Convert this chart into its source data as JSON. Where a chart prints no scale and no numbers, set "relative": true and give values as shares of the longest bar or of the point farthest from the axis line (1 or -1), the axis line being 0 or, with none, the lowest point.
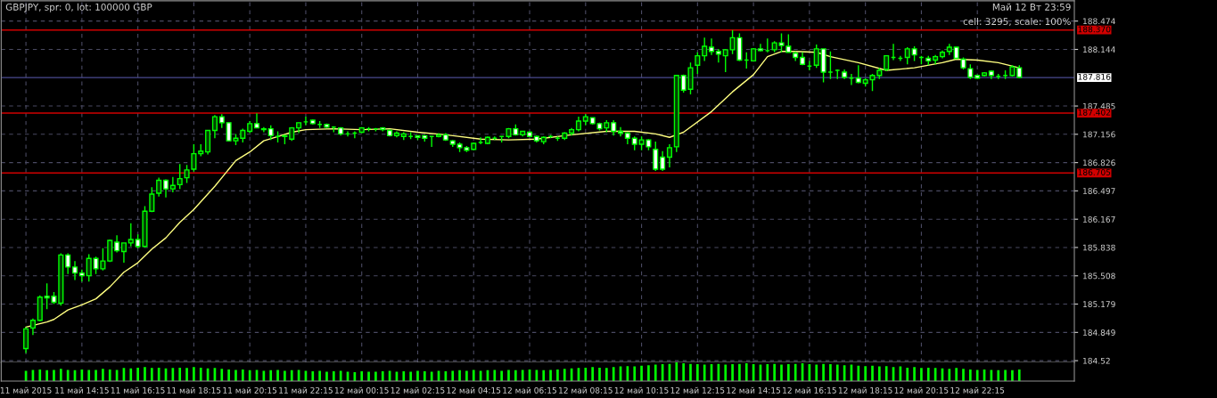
{
  "chart_data": [
    {
      "type": "candlestick",
      "title": "GBPJPY, spr: 0, lot: 100000 GBP",
      "annotations": [
        "Май 12 Вт 23:59",
        "cell: 3295, scale: 100%"
      ],
      "color": "#00ff00",
      "x": [
        "2015-05-11T12:15",
        "2015-05-11T12:30",
        "2015-05-11T12:45",
        "2015-05-11T13:00",
        "2015-05-11T13:15",
        "2015-05-11T13:30",
        "2015-05-11T13:45",
        "2015-05-11T14:00",
        "2015-05-11T14:15",
        "2015-05-11T14:30",
        "2015-05-11T14:45",
        "2015-05-11T15:00",
        "2015-05-11T15:15",
        "2015-05-11T15:30",
        "2015-05-11T15:45",
        "2015-05-11T16:00",
        "2015-05-11T16:15",
        "2015-05-11T16:30",
        "2015-05-11T16:45",
        "2015-05-11T17:00",
        "2015-05-11T17:15",
        "2015-05-11T17:30",
        "2015-05-11T17:45",
        "2015-05-11T18:00",
        "2015-05-11T18:15",
        "2015-05-11T18:30",
        "2015-05-11T18:45",
        "2015-05-11T19:00",
        "2015-05-11T19:15",
        "2015-05-11T19:30",
        "2015-05-11T19:45",
        "2015-05-11T20:00",
        "2015-05-11T20:15",
        "2015-05-11T20:30",
        "2015-05-11T20:45",
        "2015-05-11T21:00",
        "2015-05-11T21:15",
        "2015-05-11T21:30",
        "2015-05-11T21:45",
        "2015-05-11T22:00",
        "2015-05-11T22:15",
        "2015-05-11T22:30",
        "2015-05-11T22:45",
        "2015-05-11T23:00",
        "2015-05-11T23:15",
        "2015-05-11T23:30",
        "2015-05-11T23:45",
        "2015-05-12T00:00",
        "2015-05-12T00:15",
        "2015-05-12T00:30",
        "2015-05-12T00:45",
        "2015-05-12T01:00",
        "2015-05-12T01:15",
        "2015-05-12T01:30",
        "2015-05-12T01:45",
        "2015-05-12T02:00",
        "2015-05-12T02:15",
        "2015-05-12T02:30",
        "2015-05-12T02:45",
        "2015-05-12T03:00",
        "2015-05-12T03:15",
        "2015-05-12T03:30",
        "2015-05-12T03:45",
        "2015-05-12T04:00",
        "2015-05-12T04:15",
        "2015-05-12T04:30",
        "2015-05-12T04:45",
        "2015-05-12T05:00",
        "2015-05-12T05:15",
        "2015-05-12T05:30",
        "2015-05-12T05:45",
        "2015-05-12T06:00",
        "2015-05-12T06:15",
        "2015-05-12T06:30",
        "2015-05-12T06:45",
        "2015-05-12T07:00",
        "2015-05-12T07:15",
        "2015-05-12T07:30",
        "2015-05-12T07:45",
        "2015-05-12T08:00",
        "2015-05-12T08:15",
        "2015-05-12T08:30",
        "2015-05-12T08:45",
        "2015-05-12T09:00",
        "2015-05-12T09:15",
        "2015-05-12T09:30",
        "2015-05-12T09:45",
        "2015-05-12T10:00",
        "2015-05-12T10:15",
        "2015-05-12T10:30",
        "2015-05-12T10:45",
        "2015-05-12T11:00",
        "2015-05-12T11:15",
        "2015-05-12T11:30",
        "2015-05-12T11:45",
        "2015-05-12T12:00",
        "2015-05-12T12:15",
        "2015-05-12T12:30",
        "2015-05-12T12:45",
        "2015-05-12T13:00",
        "2015-05-12T13:15",
        "2015-05-12T13:30",
        "2015-05-12T13:45",
        "2015-05-12T14:00",
        "2015-05-12T14:15",
        "2015-05-12T14:30",
        "2015-05-12T14:45",
        "2015-05-12T15:00",
        "2015-05-12T15:15",
        "2015-05-12T15:30",
        "2015-05-12T15:45",
        "2015-05-12T16:00",
        "2015-05-12T16:15",
        "2015-05-12T16:30",
        "2015-05-12T16:45",
        "2015-05-12T17:00",
        "2015-05-12T17:15",
        "2015-05-12T17:30",
        "2015-05-12T17:45",
        "2015-05-12T18:00",
        "2015-05-12T18:15",
        "2015-05-12T18:30",
        "2015-05-12T18:45",
        "2015-05-12T19:00",
        "2015-05-12T19:15",
        "2015-05-12T19:30",
        "2015-05-12T19:45",
        "2015-05-12T20:00",
        "2015-05-12T20:15",
        "2015-05-12T20:30",
        "2015-05-12T20:45",
        "2015-05-12T21:00",
        "2015-05-12T21:15",
        "2015-05-12T21:30",
        "2015-05-12T21:45",
        "2015-05-12T22:00",
        "2015-05-12T22:15",
        "2015-05-12T22:30",
        "2015-05-12T22:45",
        "2015-05-12T23:00",
        "2015-05-12T23:15",
        "2015-05-12T23:30",
        "2015-05-12T23:45"
      ],
      "ohlc": [
        [
          184.66,
          184.91,
          184.61,
          184.89
        ],
        [
          184.9,
          185.01,
          184.82,
          184.99
        ],
        [
          184.99,
          185.28,
          184.98,
          185.26
        ],
        [
          185.27,
          185.42,
          185.12,
          185.25
        ],
        [
          185.27,
          185.32,
          185.18,
          185.2
        ],
        [
          185.19,
          185.77,
          185.16,
          185.75
        ],
        [
          185.75,
          185.77,
          185.53,
          185.61
        ],
        [
          185.61,
          185.68,
          185.46,
          185.54
        ],
        [
          185.54,
          185.58,
          185.44,
          185.51
        ],
        [
          185.51,
          185.76,
          185.44,
          185.71
        ],
        [
          185.71,
          185.73,
          185.53,
          185.59
        ],
        [
          185.59,
          185.83,
          185.57,
          185.68
        ],
        [
          185.68,
          185.93,
          185.67,
          185.92
        ],
        [
          185.9,
          185.98,
          185.78,
          185.8
        ],
        [
          185.79,
          185.89,
          185.66,
          185.89
        ],
        [
          185.89,
          186.12,
          185.85,
          185.93
        ],
        [
          185.93,
          185.99,
          185.83,
          185.85
        ],
        [
          185.85,
          186.32,
          185.84,
          186.26
        ],
        [
          186.26,
          186.54,
          186.25,
          186.46
        ],
        [
          186.47,
          186.65,
          186.43,
          186.62
        ],
        [
          186.62,
          186.63,
          186.42,
          186.52
        ],
        [
          186.52,
          186.66,
          186.48,
          186.56
        ],
        [
          186.57,
          186.81,
          186.52,
          186.64
        ],
        [
          186.65,
          186.8,
          186.59,
          186.74
        ],
        [
          186.75,
          187.04,
          186.72,
          186.93
        ],
        [
          186.93,
          187.04,
          186.9,
          186.96
        ],
        [
          186.95,
          187.2,
          186.92,
          187.2
        ],
        [
          187.2,
          187.38,
          187.11,
          187.36
        ],
        [
          187.36,
          187.39,
          187.23,
          187.29
        ],
        [
          187.29,
          187.29,
          187.08,
          187.08
        ],
        [
          187.08,
          187.16,
          187.03,
          187.11
        ],
        [
          187.11,
          187.22,
          187.06,
          187.2
        ],
        [
          187.19,
          187.31,
          187.17,
          187.28
        ],
        [
          187.28,
          187.4,
          187.23,
          187.23
        ],
        [
          187.22,
          187.24,
          187.18,
          187.21
        ],
        [
          187.22,
          187.26,
          187.09,
          187.14
        ],
        [
          187.13,
          187.19,
          187.06,
          187.13
        ],
        [
          187.14,
          187.15,
          187.04,
          187.13
        ],
        [
          187.1,
          187.24,
          187.08,
          187.23
        ],
        [
          187.23,
          187.29,
          187.17,
          187.29
        ],
        [
          187.3,
          187.36,
          187.26,
          187.3
        ],
        [
          187.32,
          187.33,
          187.27,
          187.28
        ],
        [
          187.27,
          187.31,
          187.23,
          187.27
        ],
        [
          187.27,
          187.28,
          187.23,
          187.24
        ],
        [
          187.24,
          187.25,
          187.18,
          187.24
        ],
        [
          187.23,
          187.24,
          187.14,
          187.16
        ],
        [
          187.16,
          187.19,
          187.13,
          187.16
        ],
        [
          187.17,
          187.19,
          187.11,
          187.17
        ],
        [
          187.18,
          187.24,
          187.17,
          187.23
        ],
        [
          187.22,
          187.24,
          187.19,
          187.22
        ],
        [
          187.22,
          187.23,
          187.19,
          187.22
        ],
        [
          187.23,
          187.24,
          187.19,
          187.21
        ],
        [
          187.2,
          187.21,
          187.13,
          187.14
        ],
        [
          187.14,
          187.19,
          187.12,
          187.17
        ],
        [
          187.13,
          187.18,
          187.09,
          187.16
        ],
        [
          187.13,
          187.18,
          187.1,
          187.13
        ],
        [
          187.14,
          187.14,
          187.09,
          187.12
        ],
        [
          187.14,
          187.15,
          187.07,
          187.11
        ],
        [
          187.13,
          187.13,
          187.01,
          187.13
        ],
        [
          187.13,
          187.17,
          187.12,
          187.15
        ],
        [
          187.15,
          187.17,
          187.08,
          187.09
        ],
        [
          187.08,
          187.09,
          187.01,
          187.04
        ],
        [
          187.04,
          187.06,
          186.95,
          187.0
        ],
        [
          187.0,
          187.02,
          186.95,
          186.97
        ],
        [
          186.98,
          187.06,
          186.97,
          187.05
        ],
        [
          187.06,
          187.12,
          187.04,
          187.06
        ],
        [
          187.05,
          187.13,
          187.04,
          187.12
        ],
        [
          187.11,
          187.13,
          187.09,
          187.11
        ],
        [
          187.13,
          187.13,
          187.06,
          187.13
        ],
        [
          187.13,
          187.23,
          187.11,
          187.22
        ],
        [
          187.22,
          187.27,
          187.14,
          187.15
        ],
        [
          187.15,
          187.19,
          187.13,
          187.19
        ],
        [
          187.18,
          187.19,
          187.13,
          187.13
        ],
        [
          187.13,
          187.14,
          187.06,
          187.08
        ],
        [
          187.07,
          187.13,
          187.04,
          187.12
        ],
        [
          187.13,
          187.15,
          187.11,
          187.13
        ],
        [
          187.11,
          187.13,
          187.08,
          187.11
        ],
        [
          187.11,
          187.18,
          187.09,
          187.17
        ],
        [
          187.17,
          187.23,
          187.14,
          187.21
        ],
        [
          187.21,
          187.36,
          187.19,
          187.31
        ],
        [
          187.31,
          187.39,
          187.26,
          187.36
        ],
        [
          187.35,
          187.35,
          187.27,
          187.28
        ],
        [
          187.28,
          187.29,
          187.2,
          187.22
        ],
        [
          187.23,
          187.32,
          187.18,
          187.29
        ],
        [
          187.29,
          187.32,
          187.14,
          187.19
        ],
        [
          187.19,
          187.24,
          187.13,
          187.17
        ],
        [
          187.17,
          187.18,
          187.04,
          187.11
        ],
        [
          187.11,
          187.13,
          186.97,
          187.04
        ],
        [
          187.04,
          187.13,
          186.97,
          187.09
        ],
        [
          187.09,
          187.1,
          186.97,
          187.01
        ],
        [
          186.98,
          187.07,
          186.73,
          186.75
        ],
        [
          186.89,
          186.96,
          186.73,
          186.75
        ],
        [
          186.89,
          187.04,
          186.77,
          187.0
        ],
        [
          187.01,
          187.84,
          186.95,
          187.84
        ],
        [
          187.84,
          187.85,
          187.64,
          187.67
        ],
        [
          187.68,
          187.99,
          187.62,
          187.93
        ],
        [
          187.96,
          188.11,
          187.86,
          188.07
        ],
        [
          188.07,
          188.28,
          188.01,
          188.18
        ],
        [
          188.17,
          188.27,
          188.08,
          188.12
        ],
        [
          188.12,
          188.15,
          187.99,
          188.09
        ],
        [
          188.07,
          188.15,
          187.88,
          188.14
        ],
        [
          188.14,
          188.37,
          188.09,
          188.28
        ],
        [
          188.28,
          188.33,
          188.01,
          188.02
        ],
        [
          188.02,
          188.11,
          187.92,
          188.02
        ],
        [
          188.01,
          188.16,
          188.01,
          188.15
        ],
        [
          188.15,
          188.21,
          188.12,
          188.13
        ],
        [
          188.13,
          188.27,
          188.11,
          188.13
        ],
        [
          188.14,
          188.24,
          188.11,
          188.22
        ],
        [
          188.22,
          188.33,
          188.11,
          188.19
        ],
        [
          188.18,
          188.32,
          188.11,
          188.11
        ],
        [
          188.1,
          188.12,
          188.01,
          188.05
        ],
        [
          188.05,
          188.11,
          187.96,
          187.97
        ],
        [
          187.95,
          188.01,
          187.9,
          187.95
        ],
        [
          187.96,
          188.2,
          187.93,
          188.15
        ],
        [
          188.15,
          188.15,
          187.76,
          187.88
        ],
        [
          187.88,
          188.12,
          187.8,
          187.88
        ],
        [
          187.9,
          187.91,
          187.8,
          187.9
        ],
        [
          187.88,
          187.91,
          187.8,
          187.82
        ],
        [
          187.81,
          187.86,
          187.73,
          187.81
        ],
        [
          187.81,
          187.96,
          187.75,
          187.76
        ],
        [
          187.75,
          187.81,
          187.71,
          187.79
        ],
        [
          187.79,
          187.86,
          187.66,
          187.84
        ],
        [
          187.84,
          187.93,
          187.8,
          187.9
        ],
        [
          187.91,
          188.07,
          187.89,
          188.07
        ],
        [
          188.05,
          188.21,
          188.02,
          188.05
        ],
        [
          188.04,
          188.07,
          188.01,
          188.04
        ],
        [
          188.05,
          188.17,
          187.97,
          188.15
        ],
        [
          188.15,
          188.18,
          188.01,
          188.08
        ],
        [
          188.05,
          188.07,
          187.97,
          188.05
        ],
        [
          188.04,
          188.07,
          187.96,
          188.01
        ],
        [
          188.02,
          188.08,
          187.97,
          188.06
        ],
        [
          188.06,
          188.13,
          188.04,
          188.11
        ],
        [
          188.12,
          188.21,
          188.08,
          188.17
        ],
        [
          188.17,
          188.17,
          188.04,
          188.04
        ],
        [
          188.03,
          188.05,
          187.91,
          187.93
        ],
        [
          187.92,
          187.97,
          187.8,
          187.82
        ],
        [
          187.84,
          187.85,
          187.8,
          187.81
        ],
        [
          187.84,
          187.88,
          187.83,
          187.87
        ],
        [
          187.89,
          187.9,
          187.8,
          187.84
        ],
        [
          187.83,
          187.86,
          187.8,
          187.83
        ],
        [
          187.84,
          187.9,
          187.8,
          187.84
        ],
        [
          187.84,
          187.96,
          187.83,
          187.94
        ],
        [
          187.93,
          187.96,
          187.81,
          187.82
        ]
      ],
      "series": [
        {
          "type": "line",
          "color": "#ffff80",
          "x": [
            "2015-05-11T12:15",
            "2015-05-11T13:00",
            "2015-05-11T13:15",
            "2015-05-11T13:45",
            "2015-05-11T14:15",
            "2015-05-11T14:45",
            "2015-05-11T15:15",
            "2015-05-11T15:45",
            "2015-05-11T16:15",
            "2015-05-11T16:45",
            "2015-05-11T17:15",
            "2015-05-11T17:45",
            "2015-05-11T18:15",
            "2015-05-11T19:00",
            "2015-05-11T19:30",
            "2015-05-11T19:45",
            "2015-05-11T20:15",
            "2015-05-11T20:45",
            "2015-05-11T21:15",
            "2015-05-11T21:45",
            "2015-05-11T22:15",
            "2015-05-11T23:15",
            "2015-05-12T00:15",
            "2015-05-12T01:15",
            "2015-05-12T02:15",
            "2015-05-12T03:15",
            "2015-05-12T04:30",
            "2015-05-12T05:30",
            "2015-05-12T06:30",
            "2015-05-12T07:45",
            "2015-05-12T09:00",
            "2015-05-12T10:00",
            "2015-05-12T10:45",
            "2015-05-12T11:15",
            "2015-05-12T11:45",
            "2015-05-12T12:45",
            "2015-05-12T13:30",
            "2015-05-12T14:15",
            "2015-05-12T14:45",
            "2015-05-12T15:15",
            "2015-05-12T15:45",
            "2015-05-12T16:30",
            "2015-05-12T17:00",
            "2015-05-12T18:00",
            "2015-05-12T19:00",
            "2015-05-12T20:00",
            "2015-05-12T21:00",
            "2015-05-12T21:30",
            "2015-05-12T22:15",
            "2015-05-12T23:00",
            "2015-05-12T23:45"
          ],
          "values": [
            184.91,
            184.97,
            185.0,
            185.11,
            185.17,
            185.24,
            185.38,
            185.55,
            185.66,
            185.82,
            185.95,
            186.13,
            186.28,
            186.55,
            186.75,
            186.85,
            186.95,
            187.08,
            187.13,
            187.18,
            187.21,
            187.22,
            187.21,
            187.22,
            187.18,
            187.15,
            187.1,
            187.09,
            187.1,
            187.15,
            187.19,
            187.19,
            187.16,
            187.12,
            187.18,
            187.42,
            187.65,
            187.85,
            188.06,
            188.12,
            188.12,
            188.11,
            188.06,
            187.99,
            187.9,
            187.93,
            187.99,
            188.03,
            188.02,
            187.99,
            187.93
          ]
        }
      ],
      "ref_lines": [
        {
          "axis": "y",
          "value": 188.37,
          "label": "188.370",
          "color": "#d00000"
        },
        {
          "axis": "y",
          "value": 187.816,
          "label": "187.816",
          "color": "#4a4a90"
        },
        {
          "axis": "y",
          "value": 187.402,
          "label": "187.402",
          "color": "#d00000"
        },
        {
          "axis": "y",
          "value": 186.705,
          "label": "186.705",
          "color": "#d00000"
        }
      ],
      "xlim": [
        "2015-05-11T11:22",
        "2015-05-13T01:43"
      ],
      "ylim": [
        184.5,
        188.71
      ],
      "xticks": [
        {
          "value": "2015-05-11T12:15",
          "label": "11 май 2015"
        },
        {
          "value": "2015-05-11T14:15",
          "label": "11 май 14:15"
        },
        {
          "value": "2015-05-11T16:15",
          "label": "11 май 16:15"
        },
        {
          "value": "2015-05-11T18:15",
          "label": "11 май 18:15"
        },
        {
          "value": "2015-05-11T20:15",
          "label": "11 май 20:15"
        },
        {
          "value": "2015-05-11T22:15",
          "label": "11 май 22:15"
        },
        {
          "value": "2015-05-12T00:15",
          "label": "12 май 00:15"
        },
        {
          "value": "2015-05-12T02:15",
          "label": "12 май 02:15"
        },
        {
          "value": "2015-05-12T04:15",
          "label": "12 май 04:15"
        },
        {
          "value": "2015-05-12T06:15",
          "label": "12 май 06:15"
        },
        {
          "value": "2015-05-12T08:15",
          "label": "12 май 08:15"
        },
        {
          "value": "2015-05-12T10:15",
          "label": "12 май 10:15"
        },
        {
          "value": "2015-05-12T12:15",
          "label": "12 май 12:15"
        },
        {
          "value": "2015-05-12T14:15",
          "label": "12 май 14:15"
        },
        {
          "value": "2015-05-12T16:15",
          "label": "12 май 16:15"
        },
        {
          "value": "2015-05-12T18:15",
          "label": "12 май 18:15"
        },
        {
          "value": "2015-05-12T20:15",
          "label": "12 май 20:15"
        },
        {
          "value": "2015-05-12T22:15",
          "label": "12 май 22:15"
        }
      ],
      "yticks": [
        184.52,
        184.849,
        185.179,
        185.508,
        185.838,
        186.167,
        186.497,
        186.826,
        187.156,
        187.485,
        188.144,
        188.474
      ],
      "grid": true
    },
    {
      "type": "bar",
      "relative": true,
      "color": "#00ff00",
      "categories": [
        null,
        null,
        null,
        null,
        null,
        null,
        null,
        null,
        null,
        null,
        null,
        null,
        null,
        null,
        null,
        null,
        null,
        null,
        null,
        null,
        null,
        null,
        null,
        null,
        null,
        null,
        null,
        null,
        null,
        null,
        null,
        null,
        null,
        null,
        null,
        null,
        null,
        null,
        null,
        null,
        null,
        null,
        null,
        null,
        null,
        null,
        null,
        null,
        null,
        null,
        null,
        null,
        null,
        null,
        null,
        null,
        null,
        null,
        null,
        null,
        null,
        null,
        null,
        null,
        null,
        null,
        null,
        null,
        null,
        null,
        null,
        null,
        null,
        null,
        null,
        null,
        null,
        null,
        null,
        null,
        null,
        null,
        null,
        null,
        null,
        null,
        null,
        null,
        null,
        null,
        null,
        null,
        null,
        null,
        null,
        null,
        null,
        null,
        null,
        null,
        null,
        null,
        null,
        null,
        null,
        null,
        null,
        null,
        null,
        null,
        null,
        null,
        null,
        null,
        null,
        null,
        null,
        null,
        null,
        null,
        null,
        null,
        null,
        null,
        null,
        null,
        null,
        null,
        null,
        null,
        null,
        null,
        null,
        null,
        null,
        null,
        null,
        null,
        null,
        null,
        null,
        null,
        null
      ],
      "values": [
        0.55,
        0.6,
        0.62,
        0.58,
        0.6,
        0.65,
        0.6,
        0.58,
        0.62,
        0.6,
        0.6,
        0.65,
        0.62,
        0.6,
        0.7,
        0.68,
        0.72,
        0.75,
        0.7,
        0.72,
        0.68,
        0.7,
        0.72,
        0.7,
        0.75,
        0.72,
        0.68,
        0.7,
        0.65,
        0.62,
        0.6,
        0.62,
        0.58,
        0.6,
        0.55,
        0.58,
        0.6,
        0.55,
        0.58,
        0.6,
        0.55,
        0.52,
        0.55,
        0.5,
        0.52,
        0.55,
        0.5,
        0.48,
        0.52,
        0.5,
        0.5,
        0.52,
        0.55,
        0.5,
        0.52,
        0.5,
        0.55,
        0.52,
        0.5,
        0.55,
        0.52,
        0.55,
        0.58,
        0.55,
        0.6,
        0.55,
        0.58,
        0.6,
        0.55,
        0.6,
        0.58,
        0.6,
        0.62,
        0.6,
        0.58,
        0.6,
        0.62,
        0.65,
        0.68,
        0.7,
        0.72,
        0.75,
        0.72,
        0.7,
        0.75,
        0.78,
        0.8,
        0.78,
        0.82,
        0.85,
        0.88,
        0.9,
        0.92,
        1,
        0.95,
        0.92,
        0.9,
        0.88,
        0.9,
        0.92,
        0.88,
        0.9,
        0.92,
        0.95,
        0.9,
        0.88,
        0.9,
        0.92,
        0.88,
        0.9,
        0.92,
        0.95,
        0.9,
        0.88,
        0.92,
        0.9,
        0.88,
        0.85,
        0.88,
        0.82,
        0.8,
        0.82,
        0.78,
        0.8,
        0.75,
        0.78,
        0.72,
        0.75,
        0.7,
        0.72,
        0.7,
        0.68,
        0.65,
        0.7,
        0.65,
        0.62,
        0.6,
        0.62,
        0.6,
        0.58,
        0.6,
        0.58,
        0.62
      ]
    }
  ]
}
